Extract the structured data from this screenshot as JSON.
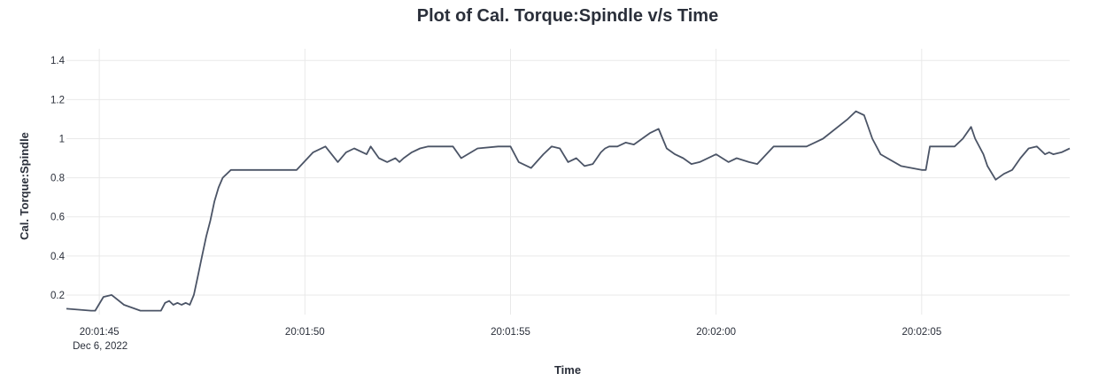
{
  "chart_data": {
    "type": "line",
    "title": "Plot of Cal. Torque:Spindle v/s Time",
    "xlabel": "Time",
    "ylabel": "Cal. Torque:Spindle",
    "x_unit": "seconds after 20:01:45",
    "xlim": [
      -0.8,
      23.6
    ],
    "ylim": [
      0.1,
      1.46
    ],
    "x_ticks": [
      {
        "value": 0,
        "label": "20:01:45",
        "sublabel": "Dec 6, 2022"
      },
      {
        "value": 5,
        "label": "20:01:50"
      },
      {
        "value": 10,
        "label": "20:01:55"
      },
      {
        "value": 15,
        "label": "20:02:00"
      },
      {
        "value": 20,
        "label": "20:02:05"
      }
    ],
    "y_ticks": [
      {
        "value": 0.2,
        "label": "0.2"
      },
      {
        "value": 0.4,
        "label": "0.4"
      },
      {
        "value": 0.6,
        "label": "0.6"
      },
      {
        "value": 0.8,
        "label": "0.8"
      },
      {
        "value": 1.0,
        "label": "1"
      },
      {
        "value": 1.2,
        "label": "1.2"
      },
      {
        "value": 1.4,
        "label": "1.4"
      }
    ],
    "grid": true,
    "series": [
      {
        "name": "Cal. Torque:Spindle",
        "color": "#4b5466",
        "x": [
          -0.8,
          -0.2,
          -0.1,
          0.1,
          0.3,
          0.6,
          1.0,
          1.5,
          1.6,
          1.7,
          1.8,
          1.9,
          2.0,
          2.1,
          2.2,
          2.3,
          2.4,
          2.5,
          2.6,
          2.7,
          2.8,
          2.9,
          3.0,
          3.2,
          3.4,
          3.6,
          3.8,
          4.0,
          4.8,
          5.2,
          5.5,
          5.8,
          6.0,
          6.2,
          6.5,
          6.6,
          6.8,
          7.0,
          7.2,
          7.3,
          7.4,
          7.6,
          7.8,
          8.0,
          8.6,
          8.8,
          9.2,
          9.7,
          10.0,
          10.2,
          10.5,
          10.8,
          11.0,
          11.2,
          11.4,
          11.6,
          11.8,
          12.0,
          12.2,
          12.3,
          12.4,
          12.6,
          12.8,
          13.0,
          13.2,
          13.4,
          13.6,
          13.8,
          14.0,
          14.2,
          14.4,
          14.6,
          15.0,
          15.3,
          15.5,
          15.8,
          16.0,
          16.4,
          16.6,
          16.8,
          17.2,
          17.4,
          17.6,
          18.2,
          18.4,
          18.6,
          18.8,
          19.0,
          19.5,
          20.0,
          20.1,
          20.2,
          20.5,
          20.6,
          20.8,
          21.0,
          21.2,
          21.3,
          21.5,
          21.6,
          21.8,
          22.0,
          22.2,
          22.4,
          22.6,
          22.8,
          23.0,
          23.1,
          23.2,
          23.4,
          23.6
        ],
        "y": [
          0.13,
          0.12,
          0.12,
          0.19,
          0.2,
          0.15,
          0.12,
          0.12,
          0.16,
          0.17,
          0.15,
          0.16,
          0.15,
          0.16,
          0.15,
          0.2,
          0.3,
          0.4,
          0.5,
          0.58,
          0.68,
          0.75,
          0.8,
          0.84,
          0.84,
          0.84,
          0.84,
          0.84,
          0.84,
          0.93,
          0.96,
          0.88,
          0.93,
          0.95,
          0.92,
          0.96,
          0.9,
          0.88,
          0.9,
          0.88,
          0.9,
          0.93,
          0.95,
          0.96,
          0.96,
          0.9,
          0.95,
          0.96,
          0.96,
          0.88,
          0.85,
          0.92,
          0.96,
          0.95,
          0.88,
          0.9,
          0.86,
          0.87,
          0.93,
          0.95,
          0.96,
          0.96,
          0.98,
          0.97,
          1.0,
          1.03,
          1.05,
          0.95,
          0.92,
          0.9,
          0.87,
          0.88,
          0.92,
          0.88,
          0.9,
          0.88,
          0.87,
          0.96,
          0.96,
          0.96,
          0.96,
          0.98,
          1.0,
          1.1,
          1.14,
          1.12,
          1.0,
          0.92,
          0.86,
          0.84,
          0.84,
          0.96,
          0.96,
          0.96,
          0.96,
          1.0,
          1.06,
          1.0,
          0.92,
          0.86,
          0.79,
          0.82,
          0.84,
          0.9,
          0.95,
          0.96,
          0.92,
          0.93,
          0.92,
          0.93,
          0.95
        ]
      }
    ]
  }
}
